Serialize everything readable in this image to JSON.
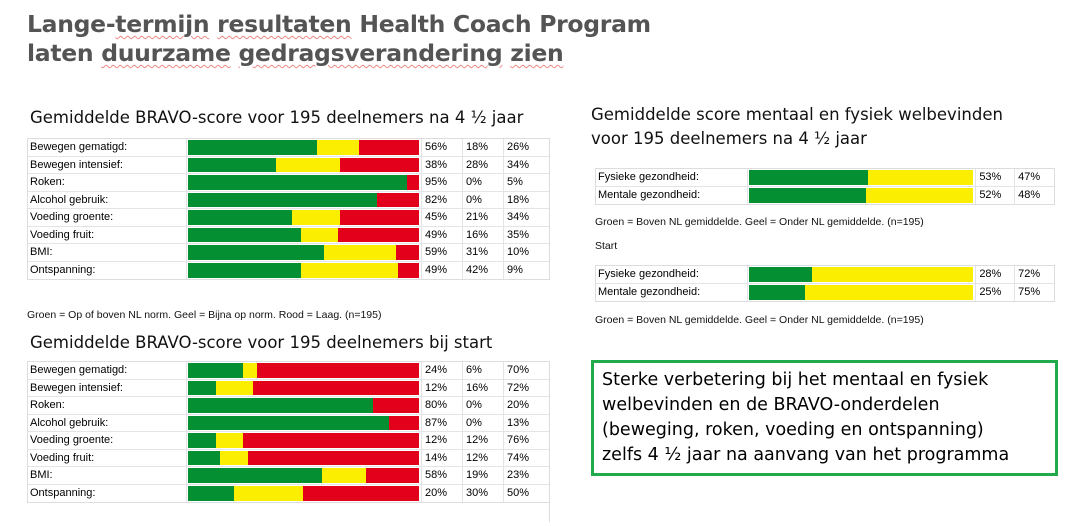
{
  "title": {
    "line1_parts": [
      "Lange-",
      "termijn",
      " ",
      "resultaten",
      " Health Coach Program"
    ],
    "line2_parts": [
      "laten ",
      "duurzame",
      " ",
      "gedragsverandering",
      " ",
      "zien"
    ]
  },
  "colors": {
    "green": "#058f33",
    "yellow": "#fcee00",
    "red": "#e3001b"
  },
  "chart_data": [
    {
      "type": "bar",
      "stacked": true,
      "orientation": "horizontal",
      "title": "Gemiddelde BRAVO-score voor 195 deelnemers na 4 ½ jaar",
      "categories": [
        "Bewegen gematigd:",
        "Bewegen intensief:",
        "Roken:",
        "Alcohol gebruik:",
        "Voeding groente:",
        "Voeding fruit:",
        "BMI:",
        "Ontspanning:"
      ],
      "series": [
        {
          "color": "#058f33",
          "values": [
            56,
            38,
            95,
            82,
            45,
            49,
            59,
            49
          ]
        },
        {
          "color": "#fcee00",
          "values": [
            18,
            28,
            0,
            0,
            21,
            16,
            31,
            42
          ]
        },
        {
          "color": "#e3001b",
          "values": [
            26,
            34,
            5,
            18,
            34,
            35,
            10,
            9
          ]
        }
      ],
      "legend": "Groen = Op of boven NL norm. Geel = Bijna op norm. Rood = Laag. (n=195)"
    },
    {
      "type": "bar",
      "stacked": true,
      "orientation": "horizontal",
      "title": "Gemiddelde BRAVO-score voor 195 deelnemers bij start",
      "categories": [
        "Bewegen gematigd:",
        "Bewegen intensief:",
        "Roken:",
        "Alcohol gebruik:",
        "Voeding groente:",
        "Voeding fruit:",
        "BMI:",
        "Ontspanning:"
      ],
      "series": [
        {
          "color": "#058f33",
          "values": [
            24,
            12,
            80,
            87,
            12,
            14,
            58,
            20
          ]
        },
        {
          "color": "#fcee00",
          "values": [
            6,
            16,
            0,
            0,
            12,
            12,
            19,
            30
          ]
        },
        {
          "color": "#e3001b",
          "values": [
            70,
            72,
            20,
            13,
            76,
            74,
            23,
            50
          ]
        }
      ]
    },
    {
      "type": "bar",
      "stacked": true,
      "orientation": "horizontal",
      "title_lines": [
        "Gemiddelde score mentaal en fysiek welbevinden",
        "voor 195 deelnemers na 4 ½ jaar"
      ],
      "categories": [
        "Fysieke gezondheid:",
        "Mentale gezondheid:"
      ],
      "series": [
        {
          "color": "#058f33",
          "values": [
            53,
            52
          ]
        },
        {
          "color": "#fcee00",
          "values": [
            47,
            48
          ]
        }
      ],
      "legend": "Groen = Boven NL gemiddelde. Geel = Onder NL gemiddelde. (n=195)"
    },
    {
      "type": "bar",
      "stacked": true,
      "orientation": "horizontal",
      "title": "Start",
      "categories": [
        "Fysieke gezondheid:",
        "Mentale gezondheid:"
      ],
      "series": [
        {
          "color": "#058f33",
          "values": [
            28,
            25
          ]
        },
        {
          "color": "#fcee00",
          "values": [
            72,
            75
          ]
        }
      ],
      "legend": "Groen = Boven NL gemiddelde. Geel = Onder NL gemiddelde. (n=195)"
    }
  ],
  "conclusion": [
    "Sterke verbetering bij het mentaal en fysiek",
    "welbevinden en de BRAVO-onderdelen",
    "(beweging, roken, voeding en ontspanning)",
    "zelfs 4 ½ jaar na aanvang van het programma"
  ]
}
